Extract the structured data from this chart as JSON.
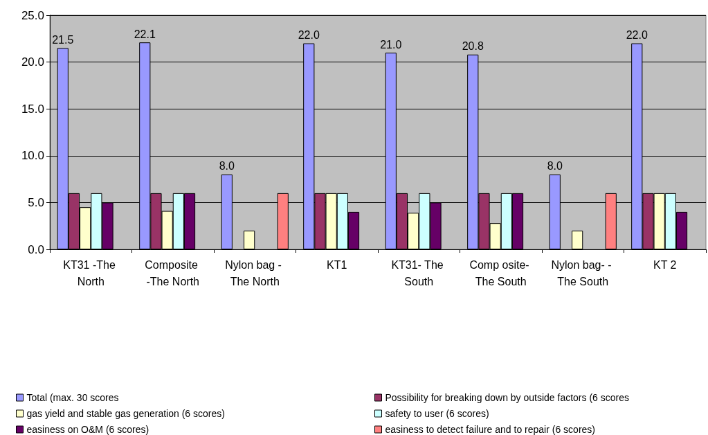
{
  "chart_data": {
    "type": "bar",
    "categories": [
      "KT31 -The North",
      "Composite -The North",
      "Nylon bag - The North",
      "KT1",
      "KT31- The South",
      "Comp osite- The South",
      "Nylon bag- - The South",
      "KT 2"
    ],
    "series": [
      {
        "name": "Total (max. 30 scores",
        "color": "#9999ff",
        "values": [
          21.5,
          22.1,
          8.0,
          22.0,
          21.0,
          20.8,
          8.0,
          22.0
        ],
        "value_labels": [
          "21.5",
          "22.1",
          "8.0",
          "22.0",
          "21.0",
          "20.8",
          "8.0",
          "22.0"
        ]
      },
      {
        "name": "Possibility for breaking down by outside factors (6 scores",
        "color": "#993366",
        "values": [
          6,
          6,
          null,
          6,
          6,
          6,
          null,
          6
        ]
      },
      {
        "name": "gas yield and stable gas generation (6 scores)",
        "color": "#ffffcc",
        "values": [
          4.5,
          4.1,
          2.0,
          6,
          3.9,
          2.8,
          2.0,
          6
        ]
      },
      {
        "name": "safety to user (6 scores)",
        "color": "#ccffff",
        "values": [
          6,
          6,
          null,
          6,
          6,
          6,
          null,
          6
        ]
      },
      {
        "name": "easiness on O&M (6 scores)",
        "color": "#660066",
        "values": [
          5,
          6,
          null,
          4,
          5,
          6,
          null,
          4
        ]
      },
      {
        "name": "easiness to detect failure and to repair (6 scores)",
        "color": "#ff8080",
        "values": [
          null,
          null,
          6,
          null,
          null,
          null,
          6,
          null
        ]
      }
    ],
    "ylim": [
      0,
      25
    ],
    "yticks": [
      {
        "value": 0,
        "label": "0.0"
      },
      {
        "value": 5,
        "label": "5.0"
      },
      {
        "value": 10,
        "label": "10.0"
      },
      {
        "value": 15,
        "label": "15.0"
      },
      {
        "value": 20,
        "label": "20.0"
      },
      {
        "value": 25,
        "label": "25.0"
      }
    ],
    "grid": "y",
    "legend": "bottom"
  }
}
